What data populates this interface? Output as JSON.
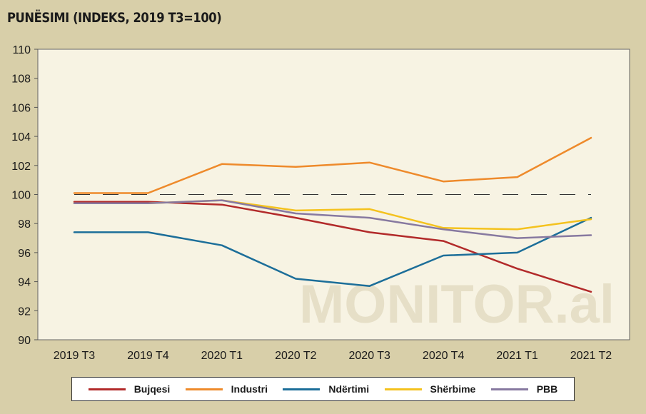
{
  "chart_data": {
    "type": "line",
    "title": "PUNËSIMI (INDEKS, 2019 T3=100)",
    "categories": [
      "2019 T3",
      "2019 T4",
      "2020 T1",
      "2020 T2",
      "2020 T3",
      "2020 T4",
      "2021 T1",
      "2021 T2"
    ],
    "ylim": [
      90,
      110
    ],
    "yticks": [
      90,
      92,
      94,
      96,
      98,
      100,
      102,
      104,
      106,
      108,
      110
    ],
    "reference_line": 100,
    "watermark": "MONITOR.al",
    "legend_position": "bottom",
    "series": [
      {
        "name": "Bujqesi",
        "color": "#b22a2a",
        "values": [
          99.5,
          99.5,
          99.3,
          98.4,
          97.4,
          96.8,
          94.9,
          93.3
        ]
      },
      {
        "name": "Industri",
        "color": "#ee8a2b",
        "values": [
          100.1,
          100.1,
          102.1,
          101.9,
          102.2,
          100.9,
          101.2,
          103.9
        ]
      },
      {
        "name": "Ndërtimi",
        "color": "#1c6e99",
        "values": [
          97.4,
          97.4,
          96.5,
          94.2,
          93.7,
          95.8,
          96.0,
          98.4
        ]
      },
      {
        "name": "Shërbime",
        "color": "#f4c21e",
        "values": [
          99.4,
          99.4,
          99.6,
          98.9,
          99.0,
          97.7,
          97.6,
          98.3
        ]
      },
      {
        "name": "PBB",
        "color": "#8779a0",
        "values": [
          99.4,
          99.4,
          99.6,
          98.7,
          98.4,
          97.6,
          97.0,
          97.2
        ]
      }
    ]
  }
}
